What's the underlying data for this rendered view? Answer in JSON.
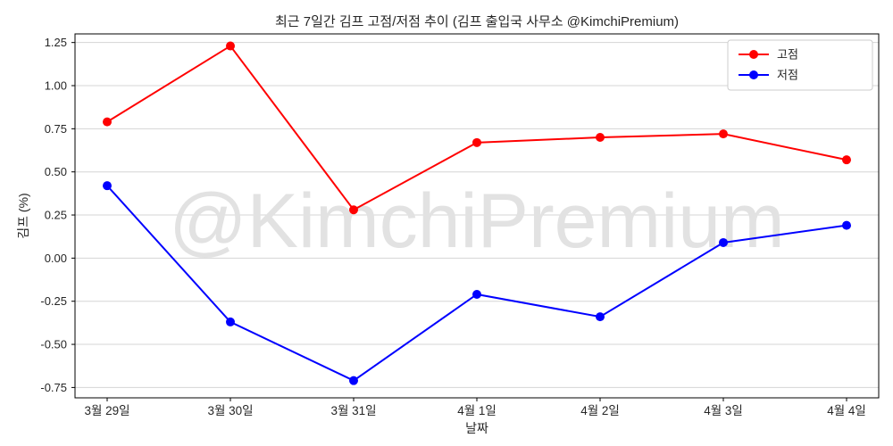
{
  "chart_data": {
    "type": "line",
    "title": "최근 7일간 김프 고점/저점 추이 (김프 출입국 사무소 @KimchiPremium)",
    "xlabel": "날짜",
    "ylabel": "김프 (%)",
    "categories": [
      "3월 29일",
      "3월 30일",
      "3월 31일",
      "4월 1일",
      "4월 2일",
      "4월 3일",
      "4월 4일"
    ],
    "series": [
      {
        "name": "고점",
        "color": "#ff0000",
        "values": [
          0.79,
          1.23,
          0.28,
          0.67,
          0.7,
          0.72,
          0.57
        ]
      },
      {
        "name": "저점",
        "color": "#0000ff",
        "values": [
          0.42,
          -0.37,
          -0.71,
          -0.21,
          -0.34,
          0.09,
          0.19
        ]
      }
    ],
    "yticks": [
      1.25,
      1.0,
      0.75,
      0.5,
      0.25,
      0.0,
      -0.25,
      -0.5,
      -0.75
    ],
    "ylim": [
      -0.81,
      1.3
    ],
    "grid": true,
    "legend_position": "upper right",
    "watermark": "@KimchiPremium",
    "colors": {
      "grid": "#d5d5d5",
      "spine": "#000000",
      "tick_text": "#262626",
      "watermark": "#e2e2e2",
      "legend_border": "#cccccc"
    }
  }
}
